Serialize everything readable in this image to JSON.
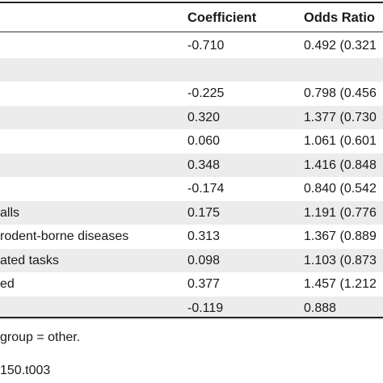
{
  "table": {
    "headers": {
      "coefficient": "Coefficient",
      "odds_ratio": "Odds Ratio"
    },
    "rows": [
      {
        "label": "",
        "coefficient": "-0.710",
        "odds": "0.492 (0.321",
        "shaded": false
      },
      {
        "label": "",
        "coefficient": "",
        "odds": "",
        "shaded": true
      },
      {
        "label": "",
        "coefficient": "-0.225",
        "odds": "0.798 (0.456",
        "shaded": false
      },
      {
        "label": "",
        "coefficient": "0.320",
        "odds": "1.377 (0.730",
        "shaded": true
      },
      {
        "label": "",
        "coefficient": "0.060",
        "odds": "1.061 (0.601",
        "shaded": false
      },
      {
        "label": "",
        "coefficient": "0.348",
        "odds": "1.416 (0.848",
        "shaded": true
      },
      {
        "label": "",
        "coefficient": "-0.174",
        "odds": "0.840 (0.542",
        "shaded": false
      },
      {
        "label": "alls",
        "coefficient": "0.175",
        "odds": "1.191 (0.776",
        "shaded": true
      },
      {
        "label": "rodent-borne diseases",
        "coefficient": "0.313",
        "odds": "1.367 (0.889",
        "shaded": false
      },
      {
        "label": "ated tasks",
        "coefficient": "0.098",
        "odds": "1.103 (0.873",
        "shaded": true
      },
      {
        "label": "ed",
        "coefficient": "0.377",
        "odds": "1.457 (1.212",
        "shaded": false
      },
      {
        "label": "",
        "coefficient": "-0.119",
        "odds": "0.888",
        "shaded": true
      }
    ]
  },
  "footnote": "group = other.",
  "doi": "150.t003"
}
